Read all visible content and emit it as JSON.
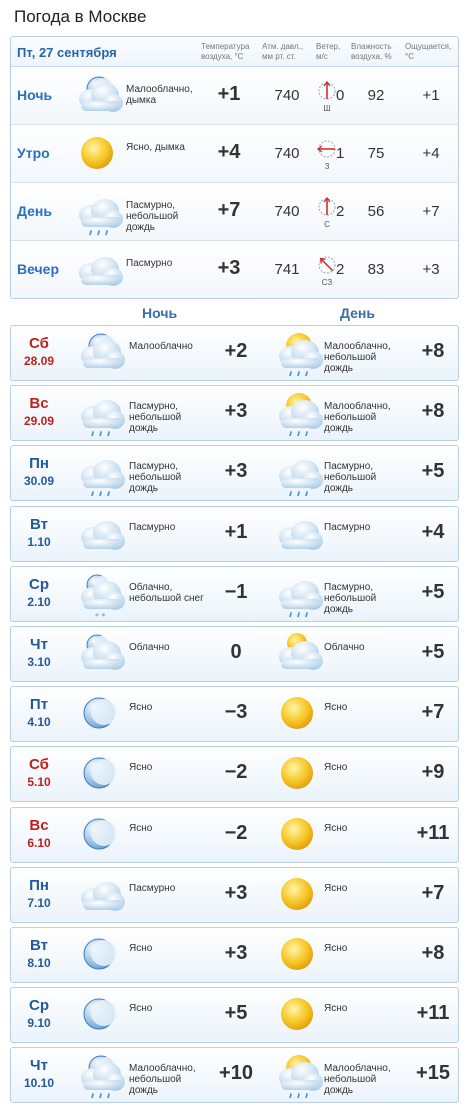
{
  "page_title": "Погода в Москве",
  "today": {
    "date": "Пт, 27 сентября",
    "headers": {
      "temp": "Температура воздуха, °С",
      "press": "Атм. давл., мм рт. ст.",
      "wind": "Ветер, м/с",
      "hum": "Влажность воздуха, %",
      "feels": "Ощущается, °С"
    },
    "rows": [
      {
        "label": "Ночь",
        "icon": "night-partly-cloudy-icon",
        "desc": "Малооблачно, дымка",
        "temp": "+1",
        "press": "740",
        "wind_dir": "Ш",
        "wind": "0",
        "hum": "92",
        "feels": "+1"
      },
      {
        "label": "Утро",
        "icon": "sun-icon",
        "desc": "Ясно, дымка",
        "temp": "+4",
        "press": "740",
        "wind_dir": "З",
        "wind": "1",
        "hum": "75",
        "feels": "+4"
      },
      {
        "label": "День",
        "icon": "cloud-light-rain-icon",
        "desc": "Пасмурно, небольшой дождь",
        "temp": "+7",
        "press": "740",
        "wind_dir": "С",
        "wind": "2",
        "hum": "56",
        "feels": "+7"
      },
      {
        "label": "Вечер",
        "icon": "cloud-icon",
        "desc": "Пасмурно",
        "temp": "+3",
        "press": "741",
        "wind_dir": "СЗ",
        "wind": "2",
        "hum": "83",
        "feels": "+3"
      }
    ]
  },
  "columns": {
    "night": "Ночь",
    "day": "День"
  },
  "forecast": [
    {
      "dow": "Сб",
      "date": "28.09",
      "weekend": true,
      "n_icon": "night-partly-cloudy-icon",
      "n_desc": "Малооблачно",
      "n_temp": "+2",
      "d_icon": "sun-cloud-rain-icon",
      "d_desc": "Малооблачно, небольшой дождь",
      "d_temp": "+8"
    },
    {
      "dow": "Вс",
      "date": "29.09",
      "weekend": true,
      "n_icon": "cloud-light-rain-icon",
      "n_desc": "Пасмурно, небольшой дождь",
      "n_temp": "+3",
      "d_icon": "sun-cloud-rain-icon",
      "d_desc": "Малооблачно, небольшой дождь",
      "d_temp": "+8"
    },
    {
      "dow": "Пн",
      "date": "30.09",
      "weekend": false,
      "n_icon": "cloud-light-rain-icon",
      "n_desc": "Пасмурно, небольшой дождь",
      "n_temp": "+3",
      "d_icon": "cloud-light-rain-icon",
      "d_desc": "Пасмурно, небольшой дождь",
      "d_temp": "+5"
    },
    {
      "dow": "Вт",
      "date": "1.10",
      "weekend": false,
      "n_icon": "cloud-icon",
      "n_desc": "Пасмурно",
      "n_temp": "+1",
      "d_icon": "cloud-icon",
      "d_desc": "Пасмурно",
      "d_temp": "+4"
    },
    {
      "dow": "Ср",
      "date": "2.10",
      "weekend": false,
      "n_icon": "night-cloud-snow-icon",
      "n_desc": "Облачно, небольшой снег",
      "n_temp": "−1",
      "d_icon": "cloud-light-rain-icon",
      "d_desc": "Пасмурно, небольшой дождь",
      "d_temp": "+5"
    },
    {
      "dow": "Чт",
      "date": "3.10",
      "weekend": false,
      "n_icon": "night-cloudy-icon",
      "n_desc": "Облачно",
      "n_temp": "0",
      "d_icon": "sun-cloudy-icon",
      "d_desc": "Облачно",
      "d_temp": "+5"
    },
    {
      "dow": "Пт",
      "date": "4.10",
      "weekend": false,
      "n_icon": "moon-icon",
      "n_desc": "Ясно",
      "n_temp": "−3",
      "d_icon": "sun-icon",
      "d_desc": "Ясно",
      "d_temp": "+7"
    },
    {
      "dow": "Сб",
      "date": "5.10",
      "weekend": true,
      "n_icon": "moon-icon",
      "n_desc": "Ясно",
      "n_temp": "−2",
      "d_icon": "sun-icon",
      "d_desc": "Ясно",
      "d_temp": "+9"
    },
    {
      "dow": "Вс",
      "date": "6.10",
      "weekend": true,
      "n_icon": "moon-icon",
      "n_desc": "Ясно",
      "n_temp": "−2",
      "d_icon": "sun-icon",
      "d_desc": "Ясно",
      "d_temp": "+11"
    },
    {
      "dow": "Пн",
      "date": "7.10",
      "weekend": false,
      "n_icon": "cloud-icon",
      "n_desc": "Пасмурно",
      "n_temp": "+3",
      "d_icon": "sun-icon",
      "d_desc": "Ясно",
      "d_temp": "+7"
    },
    {
      "dow": "Вт",
      "date": "8.10",
      "weekend": false,
      "n_icon": "moon-icon",
      "n_desc": "Ясно",
      "n_temp": "+3",
      "d_icon": "sun-icon",
      "d_desc": "Ясно",
      "d_temp": "+8"
    },
    {
      "dow": "Ср",
      "date": "9.10",
      "weekend": false,
      "n_icon": "moon-icon",
      "n_desc": "Ясно",
      "n_temp": "+5",
      "d_icon": "sun-icon",
      "d_desc": "Ясно",
      "d_temp": "+11"
    },
    {
      "dow": "Чт",
      "date": "10.10",
      "weekend": false,
      "n_icon": "night-cloud-rain-icon",
      "n_desc": "Малооблачно, небольшой дождь",
      "n_temp": "+10",
      "d_icon": "sun-cloud-rain-icon",
      "d_desc": "Малооблачно, небольшой дождь",
      "d_temp": "+15"
    }
  ],
  "colors": {
    "label_blue": "#2a6fc0",
    "weekday": "#24589a",
    "weekend": "#c0201a",
    "border": "#b9cfe2"
  }
}
